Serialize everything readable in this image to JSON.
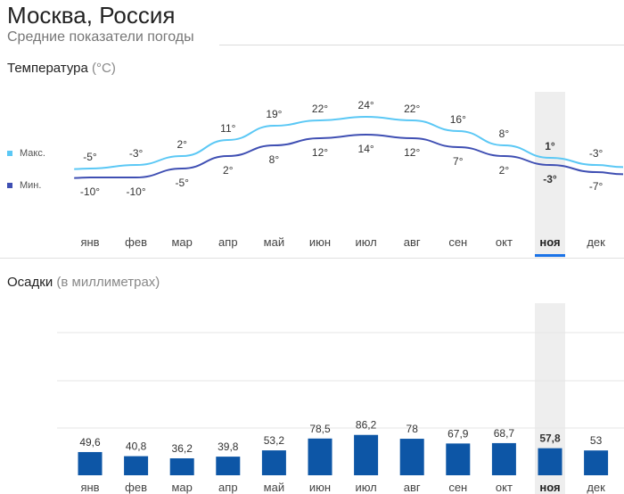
{
  "header": {
    "title": "Москва, Россия",
    "subtitle": "Средние показатели погоды"
  },
  "temperature": {
    "title": "Температура",
    "unit": "(°C)",
    "legend_max": "Макс.",
    "legend_min": "Мин."
  },
  "precipitation": {
    "title": "Осадки",
    "unit": "(в миллиметрах)"
  },
  "months": [
    "янв",
    "фев",
    "мар",
    "апр",
    "май",
    "июн",
    "июл",
    "авг",
    "сен",
    "окт",
    "ноя",
    "дек"
  ],
  "selected_month_index": 10,
  "colors": {
    "max_line": "#5bc8f5",
    "min_line": "#3f4fb3",
    "bar": "#0d56a6",
    "highlight": "#1a73e8"
  },
  "chart_data": [
    {
      "type": "line",
      "title": "Температура",
      "categories": [
        "янв",
        "фев",
        "мар",
        "апр",
        "май",
        "июн",
        "июл",
        "авг",
        "сен",
        "окт",
        "ноя",
        "дек"
      ],
      "series": [
        {
          "name": "Макс.",
          "values": [
            -5,
            -3,
            2,
            11,
            19,
            22,
            24,
            22,
            16,
            8,
            1,
            -3
          ],
          "labels": [
            "-5°",
            "-3°",
            "2°",
            "11°",
            "19°",
            "22°",
            "24°",
            "22°",
            "16°",
            "8°",
            "1°",
            "-3°"
          ]
        },
        {
          "name": "Мин.",
          "values": [
            -10,
            -10,
            -5,
            2,
            8,
            12,
            14,
            12,
            7,
            2,
            -3,
            -7
          ],
          "labels": [
            "-10°",
            "-10°",
            "-5°",
            "2°",
            "8°",
            "12°",
            "14°",
            "12°",
            "7°",
            "2°",
            "-3°",
            "-7°"
          ]
        }
      ]
    },
    {
      "type": "bar",
      "title": "Осадки",
      "categories": [
        "янв",
        "фев",
        "мар",
        "апр",
        "май",
        "июн",
        "июл",
        "авг",
        "сен",
        "окт",
        "ноя",
        "дек"
      ],
      "values": [
        49.6,
        40.8,
        36.2,
        39.8,
        53.2,
        78.5,
        86.2,
        78,
        67.9,
        68.7,
        57.8,
        53
      ],
      "labels": [
        "49,6",
        "40,8",
        "36,2",
        "39,8",
        "53,2",
        "78,5",
        "86,2",
        "78",
        "67,9",
        "68,7",
        "57,8",
        "53"
      ],
      "ylim": [
        0,
        400
      ]
    }
  ]
}
